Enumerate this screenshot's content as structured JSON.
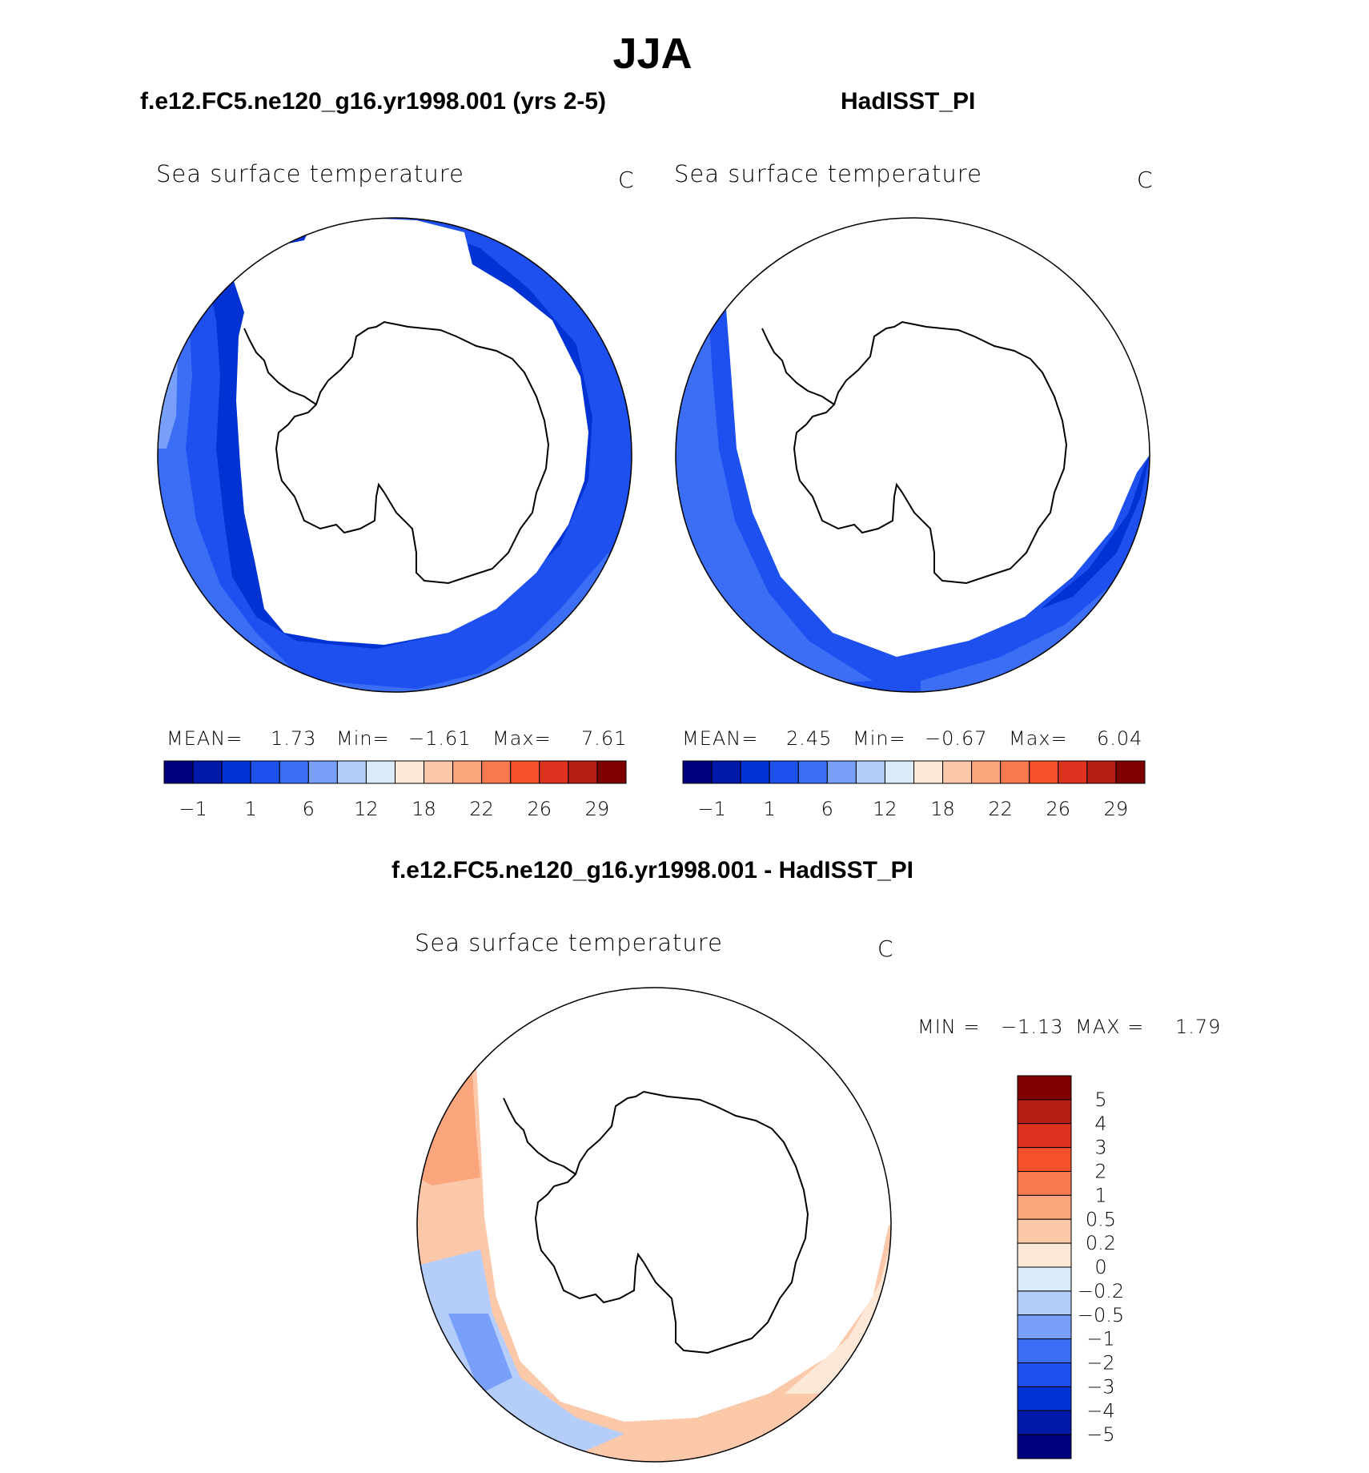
{
  "title": "JJA",
  "panels": [
    {
      "case": "f.e12.FC5.ne120_g16.yr1998.001 (yrs 2-5)",
      "variable": "Sea surface temperature",
      "units": "C",
      "stats": {
        "mean_label": "MEAN=",
        "mean": "1.73",
        "min_label": "Min=",
        "min": "−1.61",
        "max_label": "Max=",
        "max": "7.61"
      },
      "colorbar_ticks": [
        "−1",
        "1",
        "6",
        "12",
        "18",
        "22",
        "26",
        "29"
      ]
    },
    {
      "case": "HadISST_PI",
      "variable": "Sea surface temperature",
      "units": "C",
      "stats": {
        "mean_label": "MEAN=",
        "mean": "2.45",
        "min_label": "Min=",
        "min": "−0.67",
        "max_label": "Max=",
        "max": "6.04"
      },
      "colorbar_ticks": [
        "−1",
        "1",
        "6",
        "12",
        "18",
        "22",
        "26",
        "29"
      ]
    }
  ],
  "difference": {
    "title": "f.e12.FC5.ne120_g16.yr1998.001 - HadISST_PI",
    "variable": "Sea surface temperature",
    "units": "C",
    "stats": {
      "min_label": "MIN =",
      "min": "−1.13",
      "max_label": "MAX =",
      "max": "1.79"
    },
    "colorbar_ticks": [
      "5",
      "4",
      "3",
      "2",
      "1",
      "0.5",
      "0.2",
      "0",
      "−0.2",
      "−0.5",
      "−1",
      "−2",
      "−3",
      "−4",
      "−5"
    ]
  },
  "colors": {
    "sst_scale": [
      "#00007f",
      "#0019a8",
      "#0032d4",
      "#1e50f0",
      "#3c6ef5",
      "#78a0fa",
      "#b4cdfa",
      "#dcebfa",
      "#fde8d7",
      "#fcc8aa",
      "#fba57d",
      "#f87a4e",
      "#f4502a",
      "#dc321e",
      "#b41e14",
      "#7f0000"
    ],
    "diff_scale": [
      "#7f0000",
      "#b41e14",
      "#dc321e",
      "#f4502a",
      "#f87a4e",
      "#fba57d",
      "#fcc8aa",
      "#fde8d7",
      "#dcebfa",
      "#b4cdfa",
      "#78a0fa",
      "#3c6ef5",
      "#1e50f0",
      "#0032d4",
      "#0019a8",
      "#00007f"
    ]
  }
}
